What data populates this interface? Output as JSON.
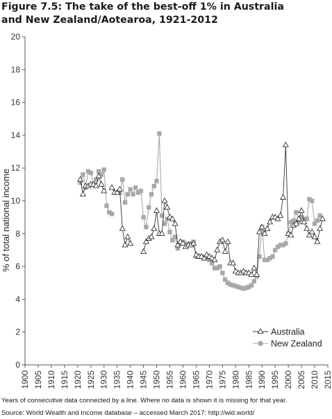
{
  "title": {
    "line1": "Figure 7.5: The take of the best-off 1% in Australia",
    "line2": "and New Zealand/Aotearoa, 1921-2012"
  },
  "notes": {
    "line1": "Years of consecutive data connected by a line. Where no data is shown it is missing for that year.",
    "line2": "Source: World Wealth and Income database – accessed March 2017: http://wid.world/"
  },
  "chart_data": {
    "type": "line",
    "ylabel": "% of total national income",
    "xlabel": "",
    "xlim": [
      1900,
      2015
    ],
    "ylim": [
      0,
      20
    ],
    "xticks": [
      1900,
      1905,
      1910,
      1915,
      1920,
      1925,
      1930,
      1935,
      1940,
      1945,
      1950,
      1955,
      1960,
      1965,
      1970,
      1975,
      1980,
      1985,
      1990,
      1995,
      2000,
      2005,
      2010,
      2015
    ],
    "yticks": [
      0,
      2,
      4,
      6,
      8,
      10,
      12,
      14,
      16,
      18,
      20
    ],
    "grid": false,
    "legend_position": "bottom-right",
    "series": [
      {
        "name": "Australia",
        "marker": "triangle-open",
        "color": "#333333",
        "points": [
          [
            1921,
            11.3
          ],
          [
            1922,
            10.4
          ],
          [
            1923,
            10.9
          ],
          [
            1924,
            10.9
          ],
          [
            1925,
            11.0
          ],
          [
            1926,
            11.0
          ],
          [
            1927,
            10.9
          ],
          [
            1928,
            11.5
          ],
          [
            1929,
            11.0
          ],
          [
            1930,
            10.6
          ],
          [
            1933,
            10.8
          ],
          [
            1934,
            10.5
          ],
          [
            1935,
            10.5
          ],
          [
            1936,
            10.7
          ],
          [
            1937,
            8.3
          ],
          [
            1938,
            7.3
          ],
          [
            1939,
            7.8
          ],
          [
            1940,
            7.4
          ],
          [
            1945,
            6.9
          ],
          [
            1946,
            7.5
          ],
          [
            1947,
            7.7
          ],
          [
            1948,
            7.8
          ],
          [
            1949,
            8.3
          ],
          [
            1950,
            9.4
          ],
          [
            1951,
            8.0
          ],
          [
            1952,
            8.0
          ],
          [
            1953,
            10.0
          ],
          [
            1954,
            9.6
          ],
          [
            1955,
            9.0
          ],
          [
            1956,
            8.9
          ],
          [
            1957,
            8.6
          ],
          [
            1958,
            7.3
          ],
          [
            1959,
            7.5
          ],
          [
            1960,
            7.4
          ],
          [
            1961,
            7.2
          ],
          [
            1962,
            7.3
          ],
          [
            1963,
            7.3
          ],
          [
            1964,
            7.4
          ],
          [
            1965,
            6.7
          ],
          [
            1966,
            6.6
          ],
          [
            1967,
            6.6
          ],
          [
            1968,
            6.5
          ],
          [
            1969,
            6.7
          ],
          [
            1970,
            6.6
          ],
          [
            1971,
            6.5
          ],
          [
            1972,
            6.4
          ],
          [
            1973,
            7.0
          ],
          [
            1974,
            7.5
          ],
          [
            1975,
            7.6
          ],
          [
            1976,
            6.9
          ],
          [
            1977,
            7.5
          ],
          [
            1978,
            6.2
          ],
          [
            1979,
            6.2
          ],
          [
            1980,
            5.7
          ],
          [
            1981,
            5.6
          ],
          [
            1982,
            5.6
          ],
          [
            1983,
            5.7
          ],
          [
            1984,
            5.6
          ],
          [
            1985,
            5.6
          ],
          [
            1986,
            5.5
          ],
          [
            1987,
            5.9
          ],
          [
            1988,
            5.5
          ],
          [
            1989,
            8.1
          ],
          [
            1990,
            8.4
          ],
          [
            1991,
            8.0
          ],
          [
            1992,
            8.3
          ],
          [
            1993,
            8.7
          ],
          [
            1994,
            9.0
          ],
          [
            1995,
            9.0
          ],
          [
            1996,
            8.9
          ],
          [
            1997,
            9.1
          ],
          [
            1998,
            10.2
          ],
          [
            1999,
            13.4
          ],
          [
            2000,
            8.0
          ],
          [
            2001,
            7.9
          ],
          [
            2002,
            8.5
          ],
          [
            2003,
            8.6
          ],
          [
            2004,
            8.9
          ],
          [
            2005,
            9.4
          ],
          [
            2006,
            8.7
          ],
          [
            2007,
            8.3
          ],
          [
            2008,
            7.9
          ],
          [
            2009,
            8.1
          ],
          [
            2010,
            7.8
          ],
          [
            2011,
            7.5
          ],
          [
            2012,
            8.3
          ],
          [
            2013,
            8.9
          ]
        ]
      },
      {
        "name": "New Zealand",
        "marker": "square-filled",
        "color": "#a8a8a8",
        "points": [
          [
            1921,
            11.1
          ],
          [
            1922,
            11.6
          ],
          [
            1923,
            10.8
          ],
          [
            1924,
            11.8
          ],
          [
            1925,
            11.7
          ],
          [
            1926,
            11.0
          ],
          [
            1927,
            11.3
          ],
          [
            1928,
            11.8
          ],
          [
            1929,
            11.6
          ],
          [
            1930,
            11.9
          ],
          [
            1931,
            9.7
          ],
          [
            1932,
            9.3
          ],
          [
            1933,
            9.2
          ],
          [
            1936,
            10.5
          ],
          [
            1937,
            11.3
          ],
          [
            1938,
            9.9
          ],
          [
            1939,
            10.4
          ],
          [
            1940,
            10.7
          ],
          [
            1941,
            10.4
          ],
          [
            1942,
            10.8
          ],
          [
            1943,
            10.5
          ],
          [
            1944,
            10.6
          ],
          [
            1945,
            9.0
          ],
          [
            1946,
            8.4
          ],
          [
            1947,
            9.6
          ],
          [
            1948,
            10.4
          ],
          [
            1949,
            10.9
          ],
          [
            1950,
            11.2
          ],
          [
            1951,
            14.1
          ],
          [
            1952,
            9.1
          ],
          [
            1953,
            8.6
          ],
          [
            1954,
            8.9
          ],
          [
            1955,
            8.1
          ],
          [
            1956,
            7.6
          ],
          [
            1957,
            7.8
          ],
          [
            1958,
            7.1
          ],
          [
            1959,
            7.4
          ],
          [
            1960,
            7.5
          ],
          [
            1961,
            7.4
          ],
          [
            1962,
            7.3
          ],
          [
            1963,
            7.4
          ],
          [
            1964,
            7.5
          ],
          [
            1965,
            6.6
          ],
          [
            1966,
            6.6
          ],
          [
            1967,
            6.6
          ],
          [
            1968,
            6.5
          ],
          [
            1969,
            6.5
          ],
          [
            1970,
            6.4
          ],
          [
            1971,
            6.2
          ],
          [
            1972,
            5.9
          ],
          [
            1973,
            5.9
          ],
          [
            1974,
            6.0
          ],
          [
            1975,
            5.6
          ],
          [
            1976,
            5.2
          ],
          [
            1977,
            5.0
          ],
          [
            1978,
            4.9
          ],
          [
            1979,
            4.85
          ],
          [
            1980,
            4.8
          ],
          [
            1981,
            4.75
          ],
          [
            1982,
            4.7
          ],
          [
            1983,
            4.65
          ],
          [
            1984,
            4.7
          ],
          [
            1985,
            4.75
          ],
          [
            1986,
            4.85
          ],
          [
            1987,
            5.1
          ],
          [
            1988,
            5.4
          ],
          [
            1989,
            6.6
          ],
          [
            1990,
            8.4
          ],
          [
            1991,
            6.4
          ],
          [
            1992,
            6.4
          ],
          [
            1993,
            6.5
          ],
          [
            1994,
            6.6
          ],
          [
            1995,
            7.0
          ],
          [
            1996,
            7.2
          ],
          [
            1997,
            7.3
          ],
          [
            1998,
            7.3
          ],
          [
            1999,
            7.4
          ],
          [
            2000,
            8.0
          ],
          [
            2001,
            8.7
          ],
          [
            2002,
            8.8
          ],
          [
            2003,
            9.3
          ],
          [
            2004,
            8.7
          ],
          [
            2005,
            9.0
          ],
          [
            2006,
            8.9
          ],
          [
            2007,
            8.9
          ],
          [
            2008,
            10.1
          ],
          [
            2009,
            10.0
          ],
          [
            2010,
            8.6
          ],
          [
            2011,
            8.8
          ],
          [
            2012,
            9.1
          ]
        ]
      }
    ]
  }
}
